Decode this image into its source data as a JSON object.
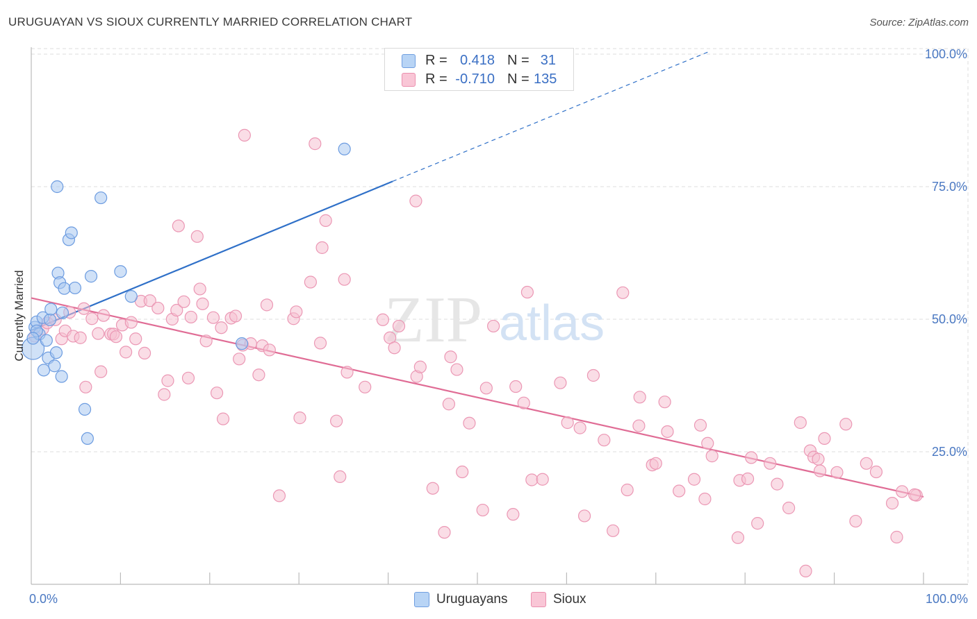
{
  "title": "URUGUAYAN VS SIOUX CURRENTLY MARRIED CORRELATION CHART",
  "source": "Source: ZipAtlas.com",
  "watermark": {
    "zip": "ZIP",
    "atlas": "atlas"
  },
  "legend": {
    "r_label": "R =",
    "n_label": "N =",
    "rows": [
      {
        "name": "Uruguayans",
        "r": "0.418",
        "n": "31",
        "fill": "#b8d4f5",
        "stroke": "#6f9ee0"
      },
      {
        "name": "Sioux",
        "r": "-0.710",
        "n": "135",
        "fill": "#f9c6d6",
        "stroke": "#eb8fae"
      }
    ]
  },
  "colors": {
    "blue_fill": "#a9c9f0",
    "blue_stroke": "#6b9be0",
    "blue_line": "#2f70c8",
    "pink_fill": "#f6c1d2",
    "pink_stroke": "#eb97b4",
    "pink_line": "#e06c95",
    "grid": "#dddddd",
    "axis": "#bbbbbb",
    "tick_text": "#4a78c2"
  },
  "chart_data": {
    "type": "scatter",
    "title": "URUGUAYAN VS SIOUX CURRENTLY MARRIED CORRELATION CHART",
    "xlabel": "",
    "ylabel": "Currently Married",
    "xlim": [
      0,
      100
    ],
    "ylim": [
      0,
      100
    ],
    "x_tick_labels": [
      "0.0%",
      "100.0%"
    ],
    "y_ticks": [
      25,
      50,
      75,
      100
    ],
    "y_tick_labels": [
      "25.0%",
      "50.0%",
      "75.0%",
      "100.0%"
    ],
    "grid": true,
    "series": [
      {
        "name": "Uruguayans",
        "trend": {
          "x0": 0,
          "y0": 47.9,
          "x1": 40.5,
          "y1": 76,
          "dash_to_x": 76,
          "dash_to_y": 100.5
        },
        "points": [
          [
            0.2,
            44.5
          ],
          [
            0.4,
            48.5
          ],
          [
            0.6,
            49.5
          ],
          [
            0.9,
            47.2
          ],
          [
            1.3,
            50.3
          ],
          [
            1.4,
            40.4
          ],
          [
            1.7,
            46.0
          ],
          [
            1.9,
            42.7
          ],
          [
            2.1,
            49.9
          ],
          [
            2.2,
            51.9
          ],
          [
            2.6,
            41.2
          ],
          [
            2.8,
            43.7
          ],
          [
            2.9,
            75.0
          ],
          [
            3.0,
            58.7
          ],
          [
            3.2,
            56.9
          ],
          [
            3.4,
            39.2
          ],
          [
            3.5,
            51.2
          ],
          [
            3.7,
            55.8
          ],
          [
            4.2,
            65.0
          ],
          [
            4.5,
            66.3
          ],
          [
            4.9,
            55.9
          ],
          [
            6.0,
            33.0
          ],
          [
            6.3,
            27.5
          ],
          [
            6.7,
            58.1
          ],
          [
            7.8,
            72.9
          ],
          [
            10.0,
            59.0
          ],
          [
            11.2,
            54.3
          ],
          [
            23.6,
            45.4
          ],
          [
            35.1,
            82.1
          ],
          [
            0.6,
            47.8
          ],
          [
            0.2,
            46.4
          ]
        ],
        "large_points": [
          [
            0.2,
            44.5
          ]
        ]
      },
      {
        "name": "Sioux",
        "trend": {
          "x0": 0,
          "y0": 54.0,
          "x1": 100,
          "y1": 16.5
        },
        "points": [
          [
            0.4,
            46.8
          ],
          [
            1.3,
            48.2
          ],
          [
            1.8,
            49.3
          ],
          [
            2.7,
            49.9
          ],
          [
            3.4,
            46.3
          ],
          [
            3.8,
            47.8
          ],
          [
            4.3,
            51.3
          ],
          [
            4.7,
            46.8
          ],
          [
            5.5,
            46.5
          ],
          [
            5.9,
            52.0
          ],
          [
            6.1,
            37.2
          ],
          [
            6.8,
            50.1
          ],
          [
            7.5,
            47.3
          ],
          [
            7.8,
            40.1
          ],
          [
            8.1,
            50.7
          ],
          [
            8.9,
            47.2
          ],
          [
            9.2,
            47.2
          ],
          [
            9.5,
            46.7
          ],
          [
            10.2,
            48.9
          ],
          [
            10.6,
            43.8
          ],
          [
            11.2,
            49.4
          ],
          [
            11.7,
            46.3
          ],
          [
            12.3,
            53.4
          ],
          [
            12.7,
            43.6
          ],
          [
            13.3,
            53.5
          ],
          [
            14.2,
            52.1
          ],
          [
            14.9,
            35.8
          ],
          [
            15.3,
            38.4
          ],
          [
            15.8,
            50.0
          ],
          [
            16.3,
            51.7
          ],
          [
            16.5,
            67.6
          ],
          [
            17.1,
            53.3
          ],
          [
            17.6,
            38.9
          ],
          [
            17.9,
            50.4
          ],
          [
            18.6,
            65.6
          ],
          [
            18.9,
            55.7
          ],
          [
            19.2,
            52.9
          ],
          [
            19.6,
            45.9
          ],
          [
            20.4,
            50.3
          ],
          [
            20.8,
            36.1
          ],
          [
            21.3,
            48.4
          ],
          [
            21.5,
            31.2
          ],
          [
            22.4,
            50.2
          ],
          [
            22.9,
            50.6
          ],
          [
            23.3,
            42.5
          ],
          [
            23.7,
            45.1
          ],
          [
            23.9,
            84.7
          ],
          [
            24.6,
            45.4
          ],
          [
            25.5,
            39.5
          ],
          [
            25.9,
            45.0
          ],
          [
            26.4,
            52.7
          ],
          [
            26.7,
            44.2
          ],
          [
            27.8,
            16.7
          ],
          [
            29.4,
            50.1
          ],
          [
            29.7,
            51.4
          ],
          [
            30.1,
            31.4
          ],
          [
            31.3,
            57.0
          ],
          [
            31.8,
            83.1
          ],
          [
            32.4,
            45.5
          ],
          [
            32.6,
            63.5
          ],
          [
            33.0,
            68.6
          ],
          [
            34.2,
            30.8
          ],
          [
            34.6,
            20.3
          ],
          [
            35.1,
            57.5
          ],
          [
            35.4,
            40.0
          ],
          [
            37.4,
            37.2
          ],
          [
            39.4,
            49.9
          ],
          [
            40.2,
            46.5
          ],
          [
            40.7,
            44.6
          ],
          [
            41.2,
            48.7
          ],
          [
            43.1,
            72.3
          ],
          [
            43.2,
            39.2
          ],
          [
            43.6,
            41.0
          ],
          [
            45.0,
            18.1
          ],
          [
            46.3,
            9.8
          ],
          [
            46.8,
            34.0
          ],
          [
            47.0,
            42.9
          ],
          [
            47.7,
            40.5
          ],
          [
            48.3,
            21.2
          ],
          [
            49.1,
            30.4
          ],
          [
            50.6,
            14.0
          ],
          [
            51.0,
            37.0
          ],
          [
            51.8,
            48.7
          ],
          [
            54.0,
            13.2
          ],
          [
            54.3,
            37.3
          ],
          [
            55.2,
            34.2
          ],
          [
            55.6,
            55.1
          ],
          [
            56.1,
            19.7
          ],
          [
            57.3,
            19.8
          ],
          [
            59.3,
            38.0
          ],
          [
            60.1,
            30.5
          ],
          [
            61.5,
            29.5
          ],
          [
            62.0,
            12.9
          ],
          [
            63.0,
            39.4
          ],
          [
            64.2,
            27.2
          ],
          [
            65.2,
            10.1
          ],
          [
            66.3,
            55.0
          ],
          [
            66.8,
            17.8
          ],
          [
            68.1,
            29.9
          ],
          [
            68.2,
            35.3
          ],
          [
            69.6,
            22.5
          ],
          [
            70.0,
            22.8
          ],
          [
            71.0,
            34.4
          ],
          [
            71.3,
            28.8
          ],
          [
            72.6,
            17.6
          ],
          [
            74.3,
            19.8
          ],
          [
            75.0,
            30.0
          ],
          [
            75.5,
            16.1
          ],
          [
            75.8,
            26.6
          ],
          [
            76.3,
            24.2
          ],
          [
            79.2,
            8.8
          ],
          [
            79.4,
            19.6
          ],
          [
            80.3,
            19.9
          ],
          [
            80.7,
            23.9
          ],
          [
            81.4,
            11.5
          ],
          [
            82.8,
            22.8
          ],
          [
            83.6,
            18.9
          ],
          [
            84.9,
            14.4
          ],
          [
            86.2,
            30.5
          ],
          [
            86.8,
            2.5
          ],
          [
            87.3,
            25.2
          ],
          [
            87.7,
            24.0
          ],
          [
            88.2,
            23.6
          ],
          [
            88.4,
            21.4
          ],
          [
            88.9,
            27.5
          ],
          [
            90.3,
            21.1
          ],
          [
            91.3,
            30.2
          ],
          [
            92.4,
            11.9
          ],
          [
            93.6,
            22.8
          ],
          [
            94.7,
            21.2
          ],
          [
            96.5,
            15.3
          ],
          [
            97.0,
            8.9
          ],
          [
            97.6,
            17.5
          ],
          [
            99.2,
            16.8
          ],
          [
            99.0,
            16.9
          ]
        ]
      }
    ]
  }
}
